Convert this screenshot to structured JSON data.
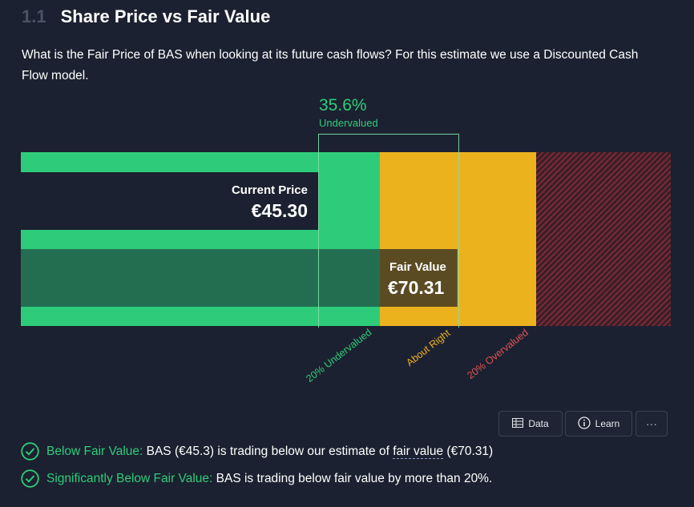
{
  "header": {
    "number": "1.1",
    "title": "Share Price vs Fair Value"
  },
  "description": "What is the Fair Price of BAS when looking at its future cash flows? For this estimate we use a Discounted Cash Flow model.",
  "valuation": {
    "percent": "35.6%",
    "status": "Undervalued",
    "current_price_label": "Current Price",
    "current_price": "€45.30",
    "fair_value_label": "Fair Value",
    "fair_value": "€70.31",
    "current_price_value": 45.3,
    "fair_value_value": 70.31
  },
  "zones": {
    "undervalued": "20% Undervalued",
    "about_right": "About Right",
    "overvalued": "20% Overvalued"
  },
  "buttons": {
    "data": "Data",
    "learn": "Learn",
    "more": "···"
  },
  "checks": [
    {
      "label": "Below Fair Value:",
      "text_a": " BAS (€45.3) is trading below our estimate of ",
      "link": "fair value",
      "text_b": " (€70.31)"
    },
    {
      "label": "Significantly Below Fair Value:",
      "text_a": " BAS is trading below fair value by more than 20%."
    }
  ],
  "colors": {
    "green": "#2ecc7a",
    "yellow": "#ecb21e",
    "red": "#e05454",
    "background": "#1b2130"
  },
  "icons": {
    "check": "check-circle-icon",
    "table": "table-icon",
    "info": "info-icon",
    "more": "more-icon"
  }
}
